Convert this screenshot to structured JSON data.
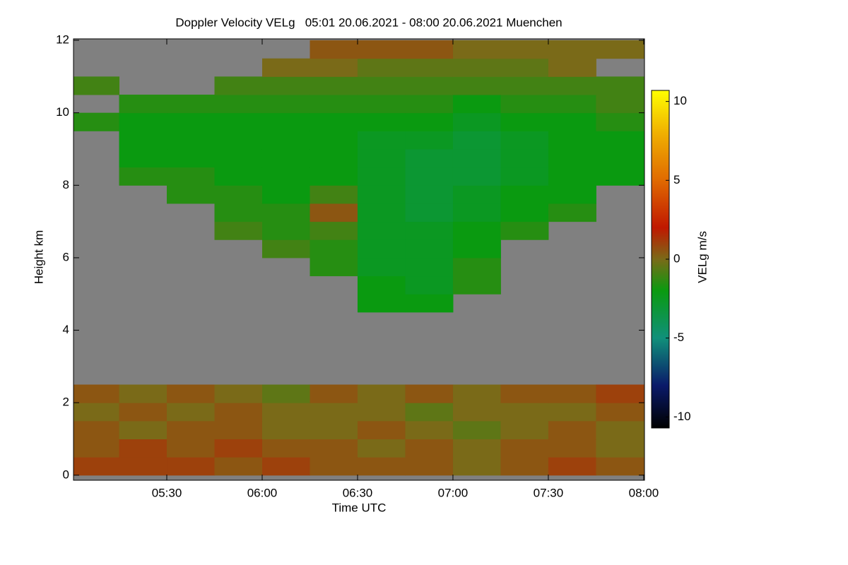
{
  "chart_data": {
    "type": "heatmap",
    "title": "Doppler Velocity VELg   05:01 20.06.2021 - 08:00 20.06.2021 Muenchen",
    "xlabel": "Time UTC",
    "ylabel": "Height km",
    "colorbar_label": "VELg m/s",
    "xlim": [
      5.011,
      8.004
    ],
    "xticks": [
      {
        "value": 5.5,
        "label": "05:30"
      },
      {
        "value": 6.0,
        "label": "06:00"
      },
      {
        "value": 6.5,
        "label": "06:30"
      },
      {
        "value": 7.0,
        "label": "07:00"
      },
      {
        "value": 7.5,
        "label": "07:30"
      },
      {
        "value": 8.0,
        "label": "08:00"
      }
    ],
    "ylim": [
      -0.14,
      12.04
    ],
    "yticks": [
      0,
      2,
      4,
      6,
      8,
      10,
      12
    ],
    "clim": [
      -10.7,
      10.7
    ],
    "cticks": [
      -10,
      -5,
      0,
      5,
      10
    ],
    "no_data_color": "#808080",
    "colormap": [
      {
        "value": -10.7,
        "color": "#000000"
      },
      {
        "value": -8,
        "color": "#0a1a6a"
      },
      {
        "value": -5,
        "color": "#10907a"
      },
      {
        "value": -2,
        "color": "#0a9a10"
      },
      {
        "value": 0,
        "color": "#7a6a18"
      },
      {
        "value": 2,
        "color": "#c01800"
      },
      {
        "value": 5,
        "color": "#e06a00"
      },
      {
        "value": 8,
        "color": "#f0b000"
      },
      {
        "value": 10.7,
        "color": "#ffff00"
      }
    ],
    "x_edges": [
      5.0,
      5.25,
      5.5,
      5.75,
      6.0,
      6.25,
      6.5,
      6.75,
      7.0,
      7.25,
      7.5,
      7.75,
      8.0
    ],
    "y_edges": [
      0,
      0.5,
      1,
      1.5,
      2,
      2.5,
      3,
      3.5,
      4,
      4.5,
      5,
      5.5,
      6,
      6.5,
      7,
      7.5,
      8,
      8.5,
      9,
      9.5,
      10,
      10.5,
      11,
      11.5,
      12
    ],
    "z": [
      [
        1,
        1,
        1,
        0.5,
        1,
        0.5,
        0.5,
        0.5,
        0,
        0.5,
        1,
        0.5
      ],
      [
        0.5,
        1,
        0.5,
        1,
        0.5,
        0.5,
        0,
        0.5,
        0,
        0.5,
        0.5,
        0
      ],
      [
        0.5,
        0,
        0.5,
        0.5,
        0,
        0,
        0.5,
        0,
        -0.5,
        0,
        0.5,
        0
      ],
      [
        0,
        0.5,
        0,
        0.5,
        0,
        0,
        0,
        -0.5,
        0,
        0,
        0,
        0.5
      ],
      [
        0.5,
        0,
        0.5,
        0,
        -0.5,
        0.5,
        0,
        0.5,
        0,
        0.5,
        0.5,
        1
      ],
      [
        null,
        null,
        null,
        null,
        null,
        null,
        null,
        null,
        null,
        null,
        null,
        null
      ],
      [
        null,
        null,
        null,
        null,
        null,
        null,
        null,
        null,
        null,
        null,
        null,
        null
      ],
      [
        null,
        null,
        null,
        null,
        null,
        null,
        null,
        null,
        null,
        null,
        null,
        null
      ],
      [
        null,
        null,
        null,
        null,
        null,
        null,
        null,
        null,
        null,
        null,
        null,
        null
      ],
      [
        null,
        null,
        null,
        null,
        null,
        null,
        -2,
        -2,
        null,
        null,
        null,
        null
      ],
      [
        null,
        null,
        null,
        null,
        null,
        null,
        -2,
        -2.5,
        -1.5,
        null,
        null,
        null
      ],
      [
        null,
        null,
        null,
        null,
        null,
        -1.5,
        -2.5,
        -2.5,
        -1.5,
        null,
        null,
        null
      ],
      [
        null,
        null,
        null,
        null,
        -1,
        -1.5,
        -2.5,
        -2.5,
        -2,
        null,
        null,
        null
      ],
      [
        null,
        null,
        null,
        -1,
        -1.5,
        -1,
        -2.5,
        -2.5,
        -2,
        -1.5,
        null,
        null
      ],
      [
        null,
        null,
        null,
        -1.5,
        -1.5,
        0.5,
        -2.5,
        -3,
        -2.5,
        -2,
        -1.5,
        null
      ],
      [
        null,
        null,
        -1.5,
        -1.5,
        -2,
        -1,
        -2.5,
        -3,
        -2.5,
        -2,
        -2,
        null
      ],
      [
        null,
        -1.5,
        -1.5,
        -2,
        -2,
        -2,
        -2.5,
        -3,
        -3,
        -2.5,
        -2,
        -2
      ],
      [
        null,
        -2,
        -2,
        -2,
        -2,
        -2,
        -2.5,
        -3,
        -3,
        -2.5,
        -2,
        -2
      ],
      [
        null,
        -2,
        -2,
        -2,
        -2,
        -2,
        -2.5,
        -2.5,
        -3,
        -2.5,
        -2,
        -2
      ],
      [
        -1.5,
        -2,
        -2,
        -2,
        -2,
        -2,
        -2,
        -2,
        -2.5,
        -2,
        -2,
        -1.5
      ],
      [
        null,
        -1.5,
        -1.5,
        -1.5,
        -1.5,
        -1.5,
        -1.5,
        -1.5,
        -2,
        -1.5,
        -1.5,
        -1
      ],
      [
        -1,
        null,
        null,
        -1,
        -1,
        -1,
        -1,
        -1,
        -1,
        -1,
        -1,
        -1
      ],
      [
        null,
        null,
        null,
        null,
        0,
        0,
        -0.5,
        -0.5,
        -0.5,
        -0.5,
        0,
        null
      ],
      [
        null,
        null,
        null,
        null,
        null,
        0.5,
        0.5,
        0.5,
        0,
        0,
        0,
        0
      ]
    ]
  }
}
